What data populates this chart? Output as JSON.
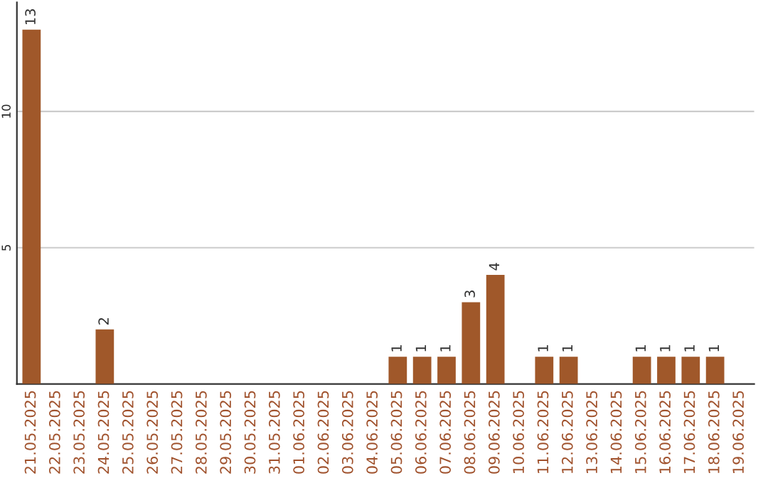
{
  "chart_data": {
    "type": "bar",
    "categories": [
      "21.05.2025",
      "22.05.2025",
      "23.05.2025",
      "24.05.2025",
      "25.05.2025",
      "26.05.2025",
      "27.05.2025",
      "28.05.2025",
      "29.05.2025",
      "30.05.2025",
      "31.05.2025",
      "01.06.2025",
      "02.06.2025",
      "03.06.2025",
      "04.06.2025",
      "05.06.2025",
      "06.06.2025",
      "07.06.2025",
      "08.06.2025",
      "09.06.2025",
      "10.06.2025",
      "11.06.2025",
      "12.06.2025",
      "13.06.2025",
      "14.06.2025",
      "15.06.2025",
      "16.06.2025",
      "17.06.2025",
      "18.06.2025",
      "19.06.2025"
    ],
    "values": [
      13,
      0,
      0,
      2,
      0,
      0,
      0,
      0,
      0,
      0,
      0,
      0,
      0,
      0,
      0,
      1,
      1,
      1,
      3,
      4,
      0,
      1,
      1,
      0,
      0,
      1,
      1,
      1,
      1,
      0
    ],
    "value_labels": [
      "13",
      null,
      null,
      "2",
      null,
      null,
      null,
      null,
      null,
      null,
      null,
      null,
      null,
      null,
      null,
      "1",
      "1",
      "1",
      "3",
      "4",
      null,
      "1",
      "1",
      null,
      null,
      "1",
      "1",
      "1",
      "1",
      null
    ],
    "color": "#a0582a",
    "ylim": [
      0,
      14
    ],
    "yticks": [
      5,
      10
    ],
    "grid": "y",
    "legend": false
  }
}
